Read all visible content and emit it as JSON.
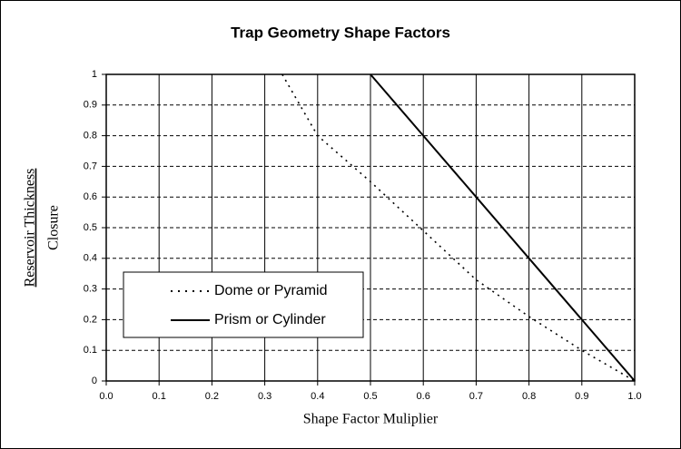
{
  "chart_data": {
    "type": "line",
    "title": "Trap Geometry Shape Factors",
    "x_label": "Shape Factor Muliplier",
    "y_label": [
      "Reservoir Thickness",
      "Closure"
    ],
    "xlim": [
      0,
      1
    ],
    "ylim": [
      0,
      1
    ],
    "xticks": [
      {
        "value": 0,
        "label": "0.0"
      },
      0.1,
      0.2,
      0.3,
      0.4,
      0.5,
      0.6,
      0.7,
      0.8,
      0.9,
      {
        "value": 1,
        "label": "1.0"
      }
    ],
    "yticks": [
      0,
      0.1,
      0.2,
      0.3,
      0.4,
      0.5,
      0.6,
      0.7,
      0.8,
      0.9,
      1
    ],
    "grid": true,
    "legend": "lower left",
    "series": [
      {
        "name": "Dome or Pyramid",
        "color": "#000000",
        "style": "dotted",
        "x": [
          0.333,
          0.4,
          0.5,
          0.6,
          0.7,
          0.8,
          0.9,
          1.0
        ],
        "values": [
          1,
          0.8,
          0.65,
          0.49,
          0.33,
          0.21,
          0.1,
          0
        ]
      },
      {
        "name": "Prism or Cylinder",
        "color": "#000000",
        "style": "solid",
        "x": [
          0.5,
          0.6,
          0.7,
          0.8,
          0.9,
          1.0
        ],
        "values": [
          1,
          0.8,
          0.6,
          0.4,
          0.2,
          0
        ]
      }
    ]
  }
}
